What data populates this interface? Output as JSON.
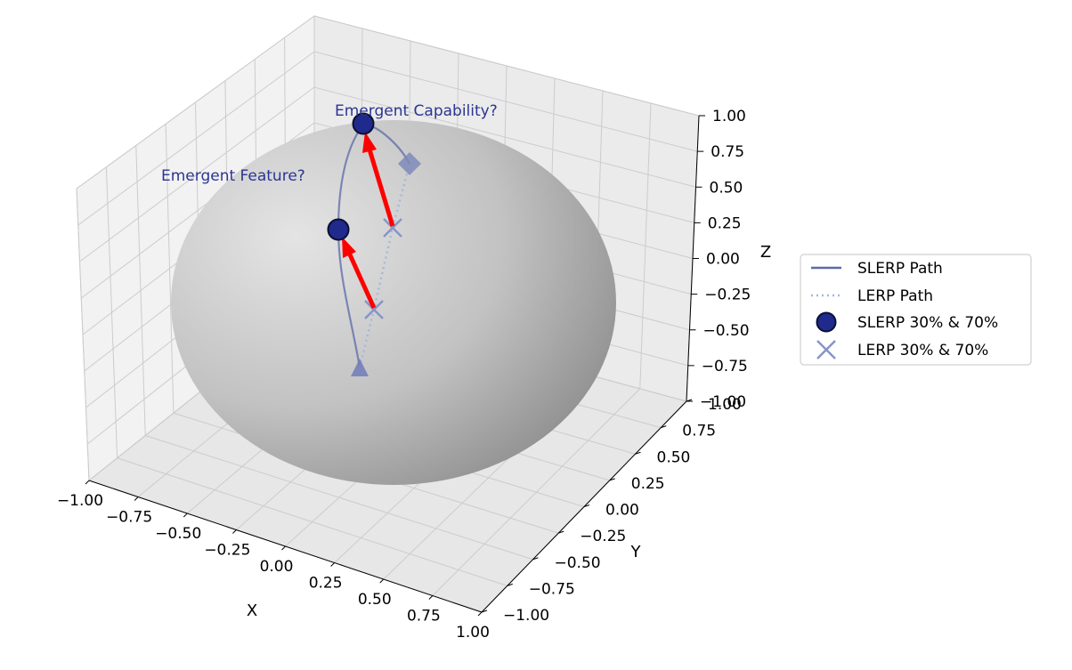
{
  "chart_data": {
    "type": "scatter",
    "title": "",
    "xlabel": "X",
    "ylabel": "Y",
    "zlabel": "Z",
    "xlim": [
      -1,
      1
    ],
    "ylim": [
      -1,
      1
    ],
    "zlim": [
      -1,
      1
    ],
    "x_ticks": [
      "−1.00",
      "−0.75",
      "−0.50",
      "−0.25",
      "0.00",
      "0.25",
      "0.50",
      "0.75",
      "1.00"
    ],
    "y_ticks": [
      "−1.00",
      "−0.75",
      "−0.50",
      "−0.25",
      "0.00",
      "0.25",
      "0.50",
      "0.75",
      "1.00"
    ],
    "z_ticks": [
      "−1.00",
      "−0.75",
      "−0.50",
      "−0.25",
      "0.00",
      "0.25",
      "0.50",
      "0.75",
      "1.00"
    ],
    "grid": true,
    "sphere": {
      "radius": 1,
      "color": "#9a9a9a"
    },
    "start_point": {
      "x": 0.0,
      "y": 0.0,
      "z": -0.85,
      "marker": "triangle"
    },
    "end_point": {
      "x": 0.2,
      "y": 0.45,
      "z": 0.87,
      "marker": "diamond"
    },
    "series": [
      {
        "name": "SLERP Path",
        "style": "solid",
        "color": "#5c6aa8"
      },
      {
        "name": "LERP Path",
        "style": "dotted",
        "color": "#a4b8dc"
      },
      {
        "name": "SLERP 30% & 70%",
        "style": "marker-circle",
        "color": "#1f2a8c",
        "points": [
          {
            "t": 0.3,
            "x": -0.35,
            "y": 0.1,
            "z": 0.2
          },
          {
            "t": 0.7,
            "x": -0.05,
            "y": 0.3,
            "z": 1.0
          }
        ]
      },
      {
        "name": "LERP 30% & 70%",
        "style": "marker-x",
        "color": "#7f8fc8",
        "points": [
          {
            "t": 0.3,
            "x": 0.05,
            "y": 0.15,
            "z": -0.35
          },
          {
            "t": 0.7,
            "x": 0.15,
            "y": 0.3,
            "z": 0.35
          }
        ]
      }
    ],
    "annotations": [
      "Emergent Feature?",
      "Emergent Capability?"
    ],
    "legend_position": "right"
  }
}
